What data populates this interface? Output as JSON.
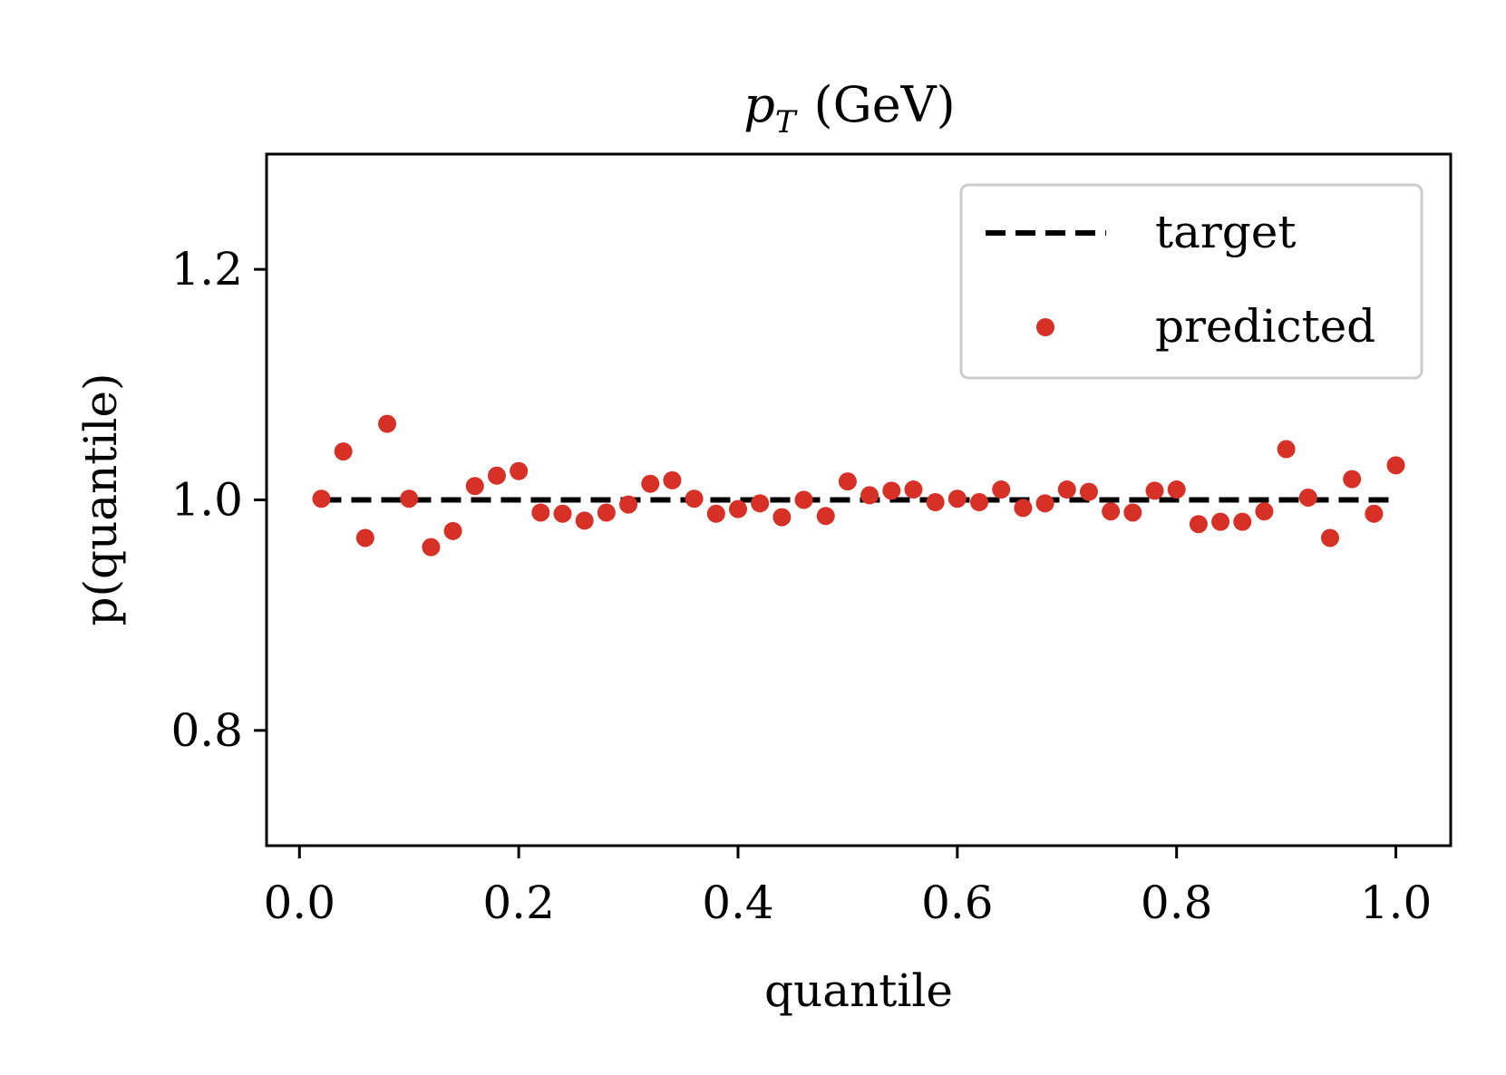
{
  "chart_data": {
    "type": "scatter",
    "title_main": "p",
    "title_sub": "T",
    "title_unit": "(GeV)",
    "xlabel": "quantile",
    "ylabel": "p(quantile)",
    "xlim": [
      -0.03,
      1.05
    ],
    "ylim": [
      0.7,
      1.3
    ],
    "xticks": [
      0.0,
      0.2,
      0.4,
      0.6,
      0.8,
      1.0
    ],
    "xtick_labels": [
      "0.0",
      "0.2",
      "0.4",
      "0.6",
      "0.8",
      "1.0"
    ],
    "yticks": [
      0.8,
      1.0,
      1.2
    ],
    "ytick_labels": [
      "0.8",
      "1.0",
      "1.2"
    ],
    "grid": false,
    "legend_position": "top-right",
    "series": [
      {
        "name": "target",
        "kind": "line",
        "style": "dashed",
        "color": "#000000",
        "x": [
          0.02,
          1.0
        ],
        "y": [
          1.0,
          1.0
        ]
      },
      {
        "name": "predicted",
        "kind": "scatter",
        "color": "#d73027",
        "x": [
          0.02,
          0.04,
          0.06,
          0.08,
          0.1,
          0.12,
          0.14,
          0.16,
          0.18,
          0.2,
          0.22,
          0.24,
          0.26,
          0.28,
          0.3,
          0.32,
          0.34,
          0.36,
          0.38,
          0.4,
          0.42,
          0.44,
          0.46,
          0.48,
          0.5,
          0.52,
          0.54,
          0.56,
          0.58,
          0.6,
          0.62,
          0.64,
          0.66,
          0.68,
          0.7,
          0.72,
          0.74,
          0.76,
          0.78,
          0.8,
          0.82,
          0.84,
          0.86,
          0.88,
          0.9,
          0.92,
          0.94,
          0.96,
          0.98,
          1.0
        ],
        "y": [
          1.001,
          1.042,
          0.967,
          1.066,
          1.001,
          0.959,
          0.973,
          1.012,
          1.021,
          1.025,
          0.989,
          0.988,
          0.982,
          0.989,
          0.996,
          1.014,
          1.017,
          1.001,
          0.988,
          0.992,
          0.997,
          0.985,
          1.0,
          0.986,
          1.016,
          1.004,
          1.008,
          1.009,
          0.998,
          1.001,
          0.998,
          1.009,
          0.993,
          0.997,
          1.009,
          1.007,
          0.99,
          0.989,
          1.008,
          1.009,
          0.979,
          0.981,
          0.981,
          0.99,
          1.044,
          1.002,
          0.967,
          1.018,
          0.988,
          1.03
        ]
      }
    ]
  }
}
